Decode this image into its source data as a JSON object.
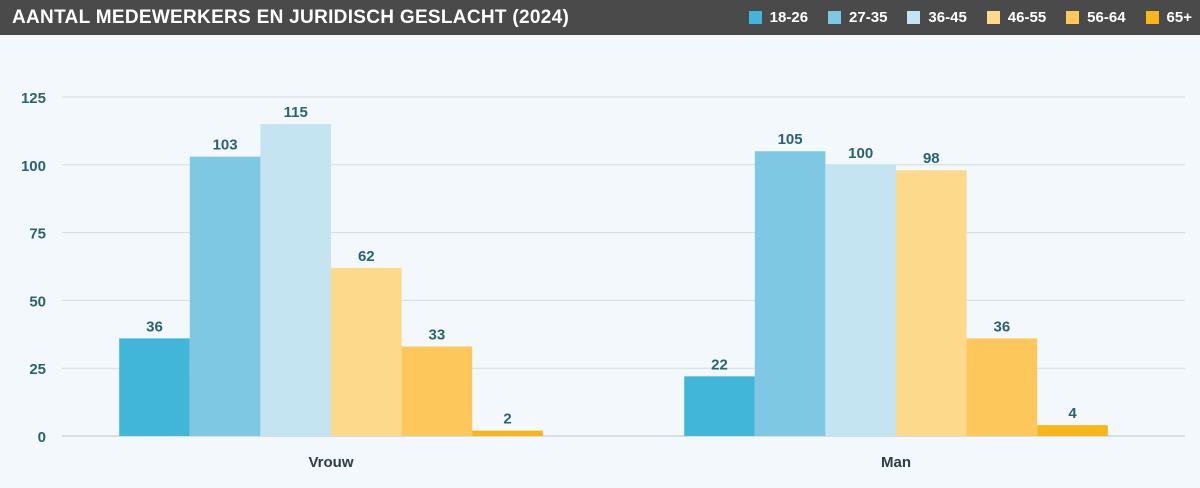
{
  "chart_data": {
    "type": "bar",
    "title": "AANTAL MEDEWERKERS EN JURIDISCH GESLACHT (2024)",
    "categories": [
      "Vrouw",
      "Man"
    ],
    "series": [
      {
        "name": "18-26",
        "color": "#42b6d9",
        "values": [
          36,
          22
        ]
      },
      {
        "name": "27-35",
        "color": "#7ec8e3",
        "values": [
          103,
          105
        ]
      },
      {
        "name": "36-45",
        "color": "#c4e4f1",
        "values": [
          115,
          100
        ]
      },
      {
        "name": "46-55",
        "color": "#fdd98b",
        "values": [
          62,
          98
        ]
      },
      {
        "name": "56-64",
        "color": "#fdc75b",
        "values": [
          33,
          36
        ]
      },
      {
        "name": "65+",
        "color": "#f7b718",
        "values": [
          2,
          4
        ]
      }
    ],
    "ylim": [
      0,
      125
    ],
    "yticks": [
      0,
      25,
      50,
      75,
      100,
      125
    ],
    "grid": true,
    "legend_position": "top-right",
    "label_color": "#2b6272"
  }
}
